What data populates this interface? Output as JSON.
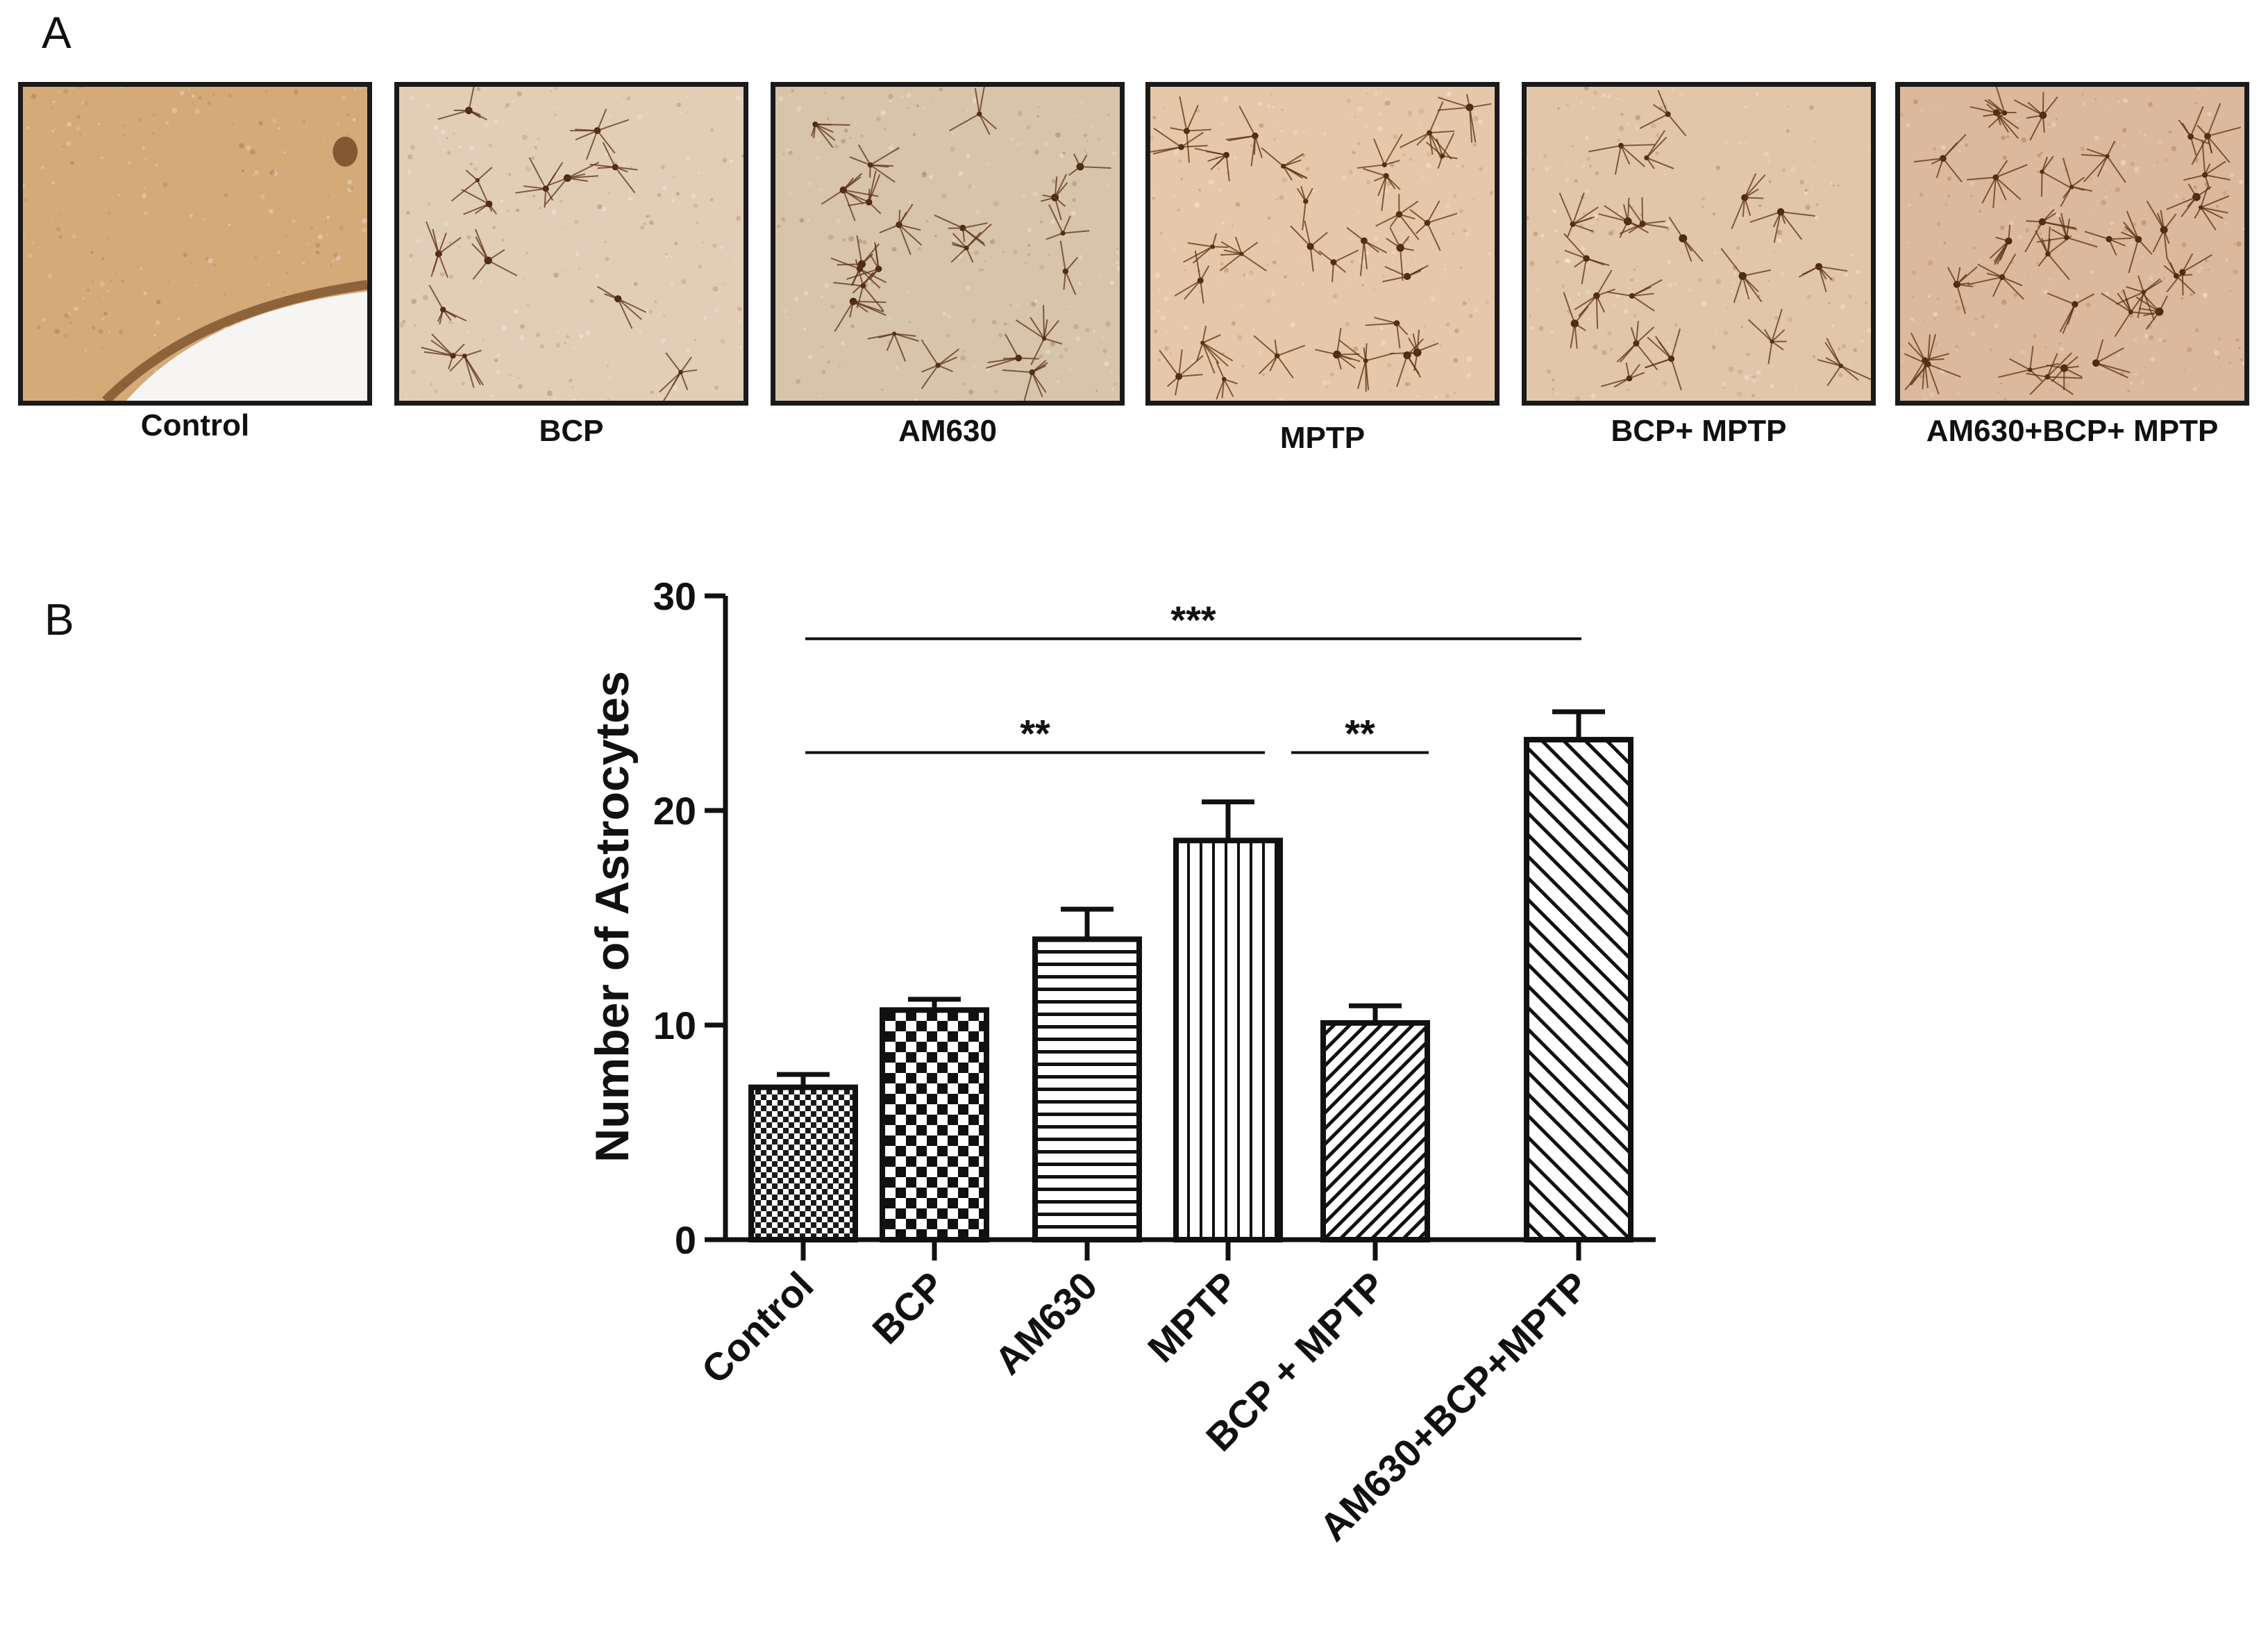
{
  "panel_a": {
    "letter": "A",
    "images": [
      {
        "label": "Control",
        "tone": "#d3aa78",
        "cells": 0
      },
      {
        "label": "BCP",
        "tone": "#e2cdb6",
        "cells": 14
      },
      {
        "label": "AM630",
        "tone": "#d8c3ab",
        "cells": 22
      },
      {
        "label": "MPTP",
        "tone": "#e6c7aa",
        "cells": 30
      },
      {
        "label": "BCP+ MPTP",
        "tone": "#e2c6a9",
        "cells": 20
      },
      {
        "label": "AM630+BCP+ MPTP",
        "tone": "#dcb89c",
        "cells": 34
      }
    ]
  },
  "panel_b": {
    "letter": "B"
  },
  "chart_data": {
    "type": "bar",
    "categories": [
      "Control",
      "BCP",
      "AM630",
      "MPTP",
      "BCP + MPTP",
      "AM630+BCP+MPTP"
    ],
    "values": [
      7.1,
      10.7,
      14.0,
      18.6,
      10.1,
      23.3
    ],
    "errors": [
      0.6,
      0.5,
      1.4,
      1.8,
      0.8,
      1.3
    ],
    "patterns": [
      "fine-checker",
      "checker",
      "horizontal-lines",
      "vertical-lines",
      "diagonal-lines",
      "diagonal-lines-wide"
    ],
    "ylabel": "Number of Astrocytes",
    "ylim": [
      0,
      30
    ],
    "yticks": [
      0,
      10,
      20,
      30
    ],
    "grid": false,
    "significance": [
      {
        "from": 0,
        "to": 5,
        "label": "***",
        "y": 28.0
      },
      {
        "from": 0,
        "to": 3,
        "label": "**",
        "y": 22.7
      },
      {
        "from": 3,
        "to": 4,
        "label": "**",
        "y": 22.7
      }
    ]
  }
}
